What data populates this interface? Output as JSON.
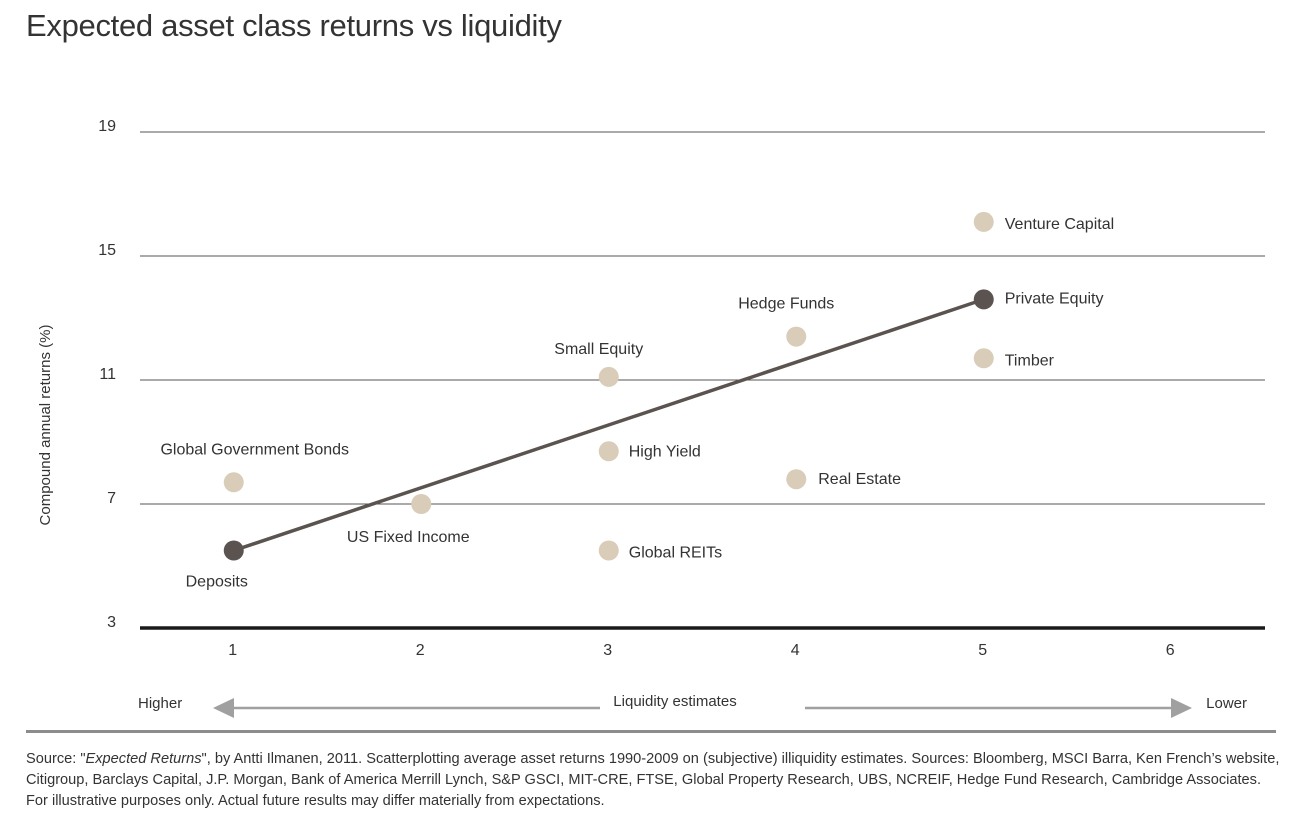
{
  "title": "Expected asset class returns vs liquidity",
  "source": {
    "prefix": "Source: \"",
    "book": "Expected Returns",
    "rest": "\", by Antti Ilmanen, 2011. Scatterplotting average asset returns 1990-2009 on (subjective) illiquidity estimates. Sources: Bloomberg, MSCI Barra, Ken French’s website, Citigroup, Barclays Capital, J.P. Morgan, Bank of America Merrill Lynch, S&P GSCI, MIT-CRE, FTSE, Global Property Research, UBS, NCREIF, Hedge Fund Research, Cambridge Associates. For illustrative purposes only. Actual future results may differ materially from expectations."
  },
  "colors": {
    "point": "#d9ccb8",
    "highlight": "#5a5350",
    "trend": "#5a5350",
    "grid": "#555555",
    "arrow": "#a0a0a0"
  },
  "chart_data": {
    "type": "scatter",
    "title": "Expected asset class returns vs liquidity",
    "ylabel": "Compound annual returns (%)",
    "xlabel": "Liquidity estimates",
    "x_axis_ends": {
      "left": "Higher",
      "right": "Lower"
    },
    "xlim": [
      0.5,
      6.5
    ],
    "ylim": [
      3,
      19
    ],
    "xticks": [
      1,
      2,
      3,
      4,
      5,
      6
    ],
    "yticks": [
      3,
      7,
      11,
      15,
      19
    ],
    "grid": "horizontal",
    "points": [
      {
        "label": "Deposits",
        "x": 1,
        "y": 5.5,
        "highlight": true
      },
      {
        "label": "Global Government Bonds",
        "x": 1,
        "y": 7.7,
        "highlight": false
      },
      {
        "label": "US Fixed Income",
        "x": 2,
        "y": 7.0,
        "highlight": false
      },
      {
        "label": "Small Equity",
        "x": 3,
        "y": 11.1,
        "highlight": false
      },
      {
        "label": "High Yield",
        "x": 3,
        "y": 8.7,
        "highlight": false
      },
      {
        "label": "Global REITs",
        "x": 3,
        "y": 5.5,
        "highlight": false
      },
      {
        "label": "Hedge Funds",
        "x": 4,
        "y": 12.4,
        "highlight": false
      },
      {
        "label": "Real Estate",
        "x": 4,
        "y": 7.8,
        "highlight": false
      },
      {
        "label": "Venture Capital",
        "x": 5,
        "y": 16.1,
        "highlight": false
      },
      {
        "label": "Private Equity",
        "x": 5,
        "y": 13.6,
        "highlight": true
      },
      {
        "label": "Timber",
        "x": 5,
        "y": 11.7,
        "highlight": false
      }
    ],
    "trend_line": {
      "from": [
        1,
        5.5
      ],
      "to": [
        5,
        13.6
      ]
    }
  }
}
